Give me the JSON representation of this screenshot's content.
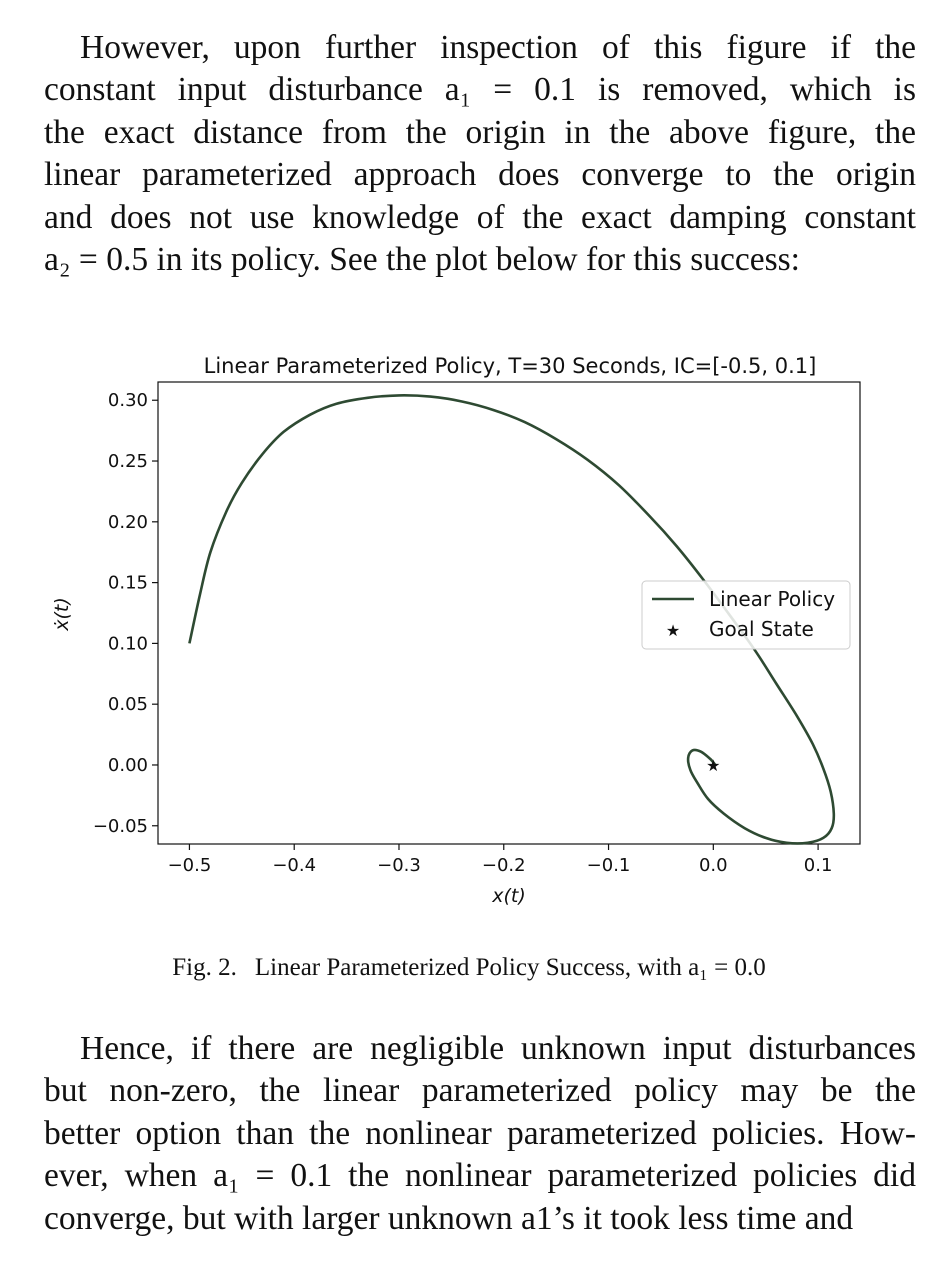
{
  "paragraph_top": {
    "lines": [
      "However, upon further inspection of this figure if the",
      "constant input disturbance a₁ = 0.1 is removed, which is",
      "the exact distance from the origin in the above figure, the",
      "linear parameterized approach does converge to the origin",
      "and does not use knowledge of the exact damping constant",
      "a₂ = 0.5 in its policy. See the plot below for this success:"
    ]
  },
  "figure": {
    "caption_number": "Fig. 2.",
    "caption_text": "Linear Parameterized Policy Success, with a₁ = 0.0"
  },
  "paragraph_bottom": {
    "lines": [
      "Hence, if there are negligible unknown input disturbances",
      "but non-zero, the linear parameterized policy may be the",
      "better option than the nonlinear parameterized policies. How-",
      "ever, when a₁ = 0.1 the nonlinear parameterized policies did",
      "converge, but with larger unknown a1’s it took less time and"
    ]
  },
  "chart_data": {
    "type": "line",
    "title": "Linear Parameterized Policy, T=30 Seconds, IC=[-0.5, 0.1]",
    "xlabel": "x(t)",
    "ylabel": "ẋ(t)",
    "xlim": [
      -0.53,
      0.14
    ],
    "ylim": [
      -0.065,
      0.315
    ],
    "xticks": [
      -0.5,
      -0.4,
      -0.3,
      -0.2,
      -0.1,
      0.0,
      0.1
    ],
    "xtick_labels": [
      "−0.5",
      "−0.4",
      "−0.3",
      "−0.2",
      "−0.1",
      "0.0",
      "0.1"
    ],
    "yticks": [
      -0.05,
      0.0,
      0.05,
      0.1,
      0.15,
      0.2,
      0.25,
      0.3
    ],
    "ytick_labels": [
      "−0.05",
      "0.00",
      "0.05",
      "0.10",
      "0.15",
      "0.20",
      "0.25",
      "0.30"
    ],
    "grid": false,
    "legend_position": "center-right",
    "series": [
      {
        "name": "Linear Policy",
        "color": "#2e4a32",
        "x": [
          -0.5,
          -0.49,
          -0.48,
          -0.465,
          -0.45,
          -0.43,
          -0.41,
          -0.385,
          -0.36,
          -0.33,
          -0.3,
          -0.27,
          -0.24,
          -0.21,
          -0.18,
          -0.15,
          -0.12,
          -0.09,
          -0.06,
          -0.035,
          -0.01,
          0.015,
          0.04,
          0.06,
          0.08,
          0.095,
          0.105,
          0.112,
          0.115,
          0.113,
          0.105,
          0.09,
          0.07,
          0.05,
          0.03,
          0.01,
          -0.005,
          -0.015,
          -0.022,
          -0.024,
          -0.02,
          -0.012,
          -0.003,
          0.002
        ],
        "y": [
          0.1,
          0.14,
          0.175,
          0.208,
          0.232,
          0.256,
          0.274,
          0.288,
          0.297,
          0.302,
          0.304,
          0.303,
          0.299,
          0.292,
          0.282,
          0.268,
          0.251,
          0.23,
          0.204,
          0.18,
          0.153,
          0.124,
          0.094,
          0.067,
          0.04,
          0.017,
          -0.003,
          -0.022,
          -0.04,
          -0.052,
          -0.06,
          -0.064,
          -0.064,
          -0.06,
          -0.052,
          -0.04,
          -0.028,
          -0.015,
          -0.004,
          0.006,
          0.012,
          0.011,
          0.005,
          0.0
        ]
      },
      {
        "name": "Goal State",
        "type": "scatter",
        "marker": "star",
        "color": "#777777",
        "x": [
          0.0
        ],
        "y": [
          0.0
        ]
      }
    ]
  }
}
